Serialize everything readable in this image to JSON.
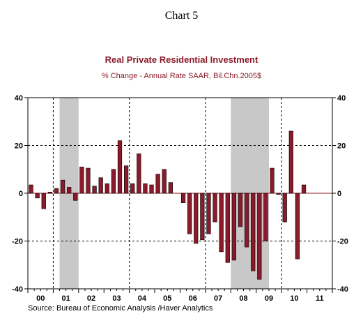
{
  "chart_label": "Chart 5",
  "source": "Source:  Bureau of Economic Analysis /Haver Analytics",
  "chart_data": {
    "type": "bar",
    "title": "Real Private Residential Investment",
    "subtitle": "% Change - Annual Rate    SAAR, Bil.Chn.2005$",
    "ylim": [
      -40,
      40
    ],
    "y_ticks": [
      40,
      20,
      0,
      -20,
      -40
    ],
    "grid": "dashed horizontal at ±20 and dashed vertical at year boundaries",
    "year_labels": [
      "00",
      "01",
      "02",
      "03",
      "04",
      "05",
      "06",
      "07",
      "08",
      "09",
      "10",
      "11"
    ],
    "x_start": "2000Q1",
    "x_end": "2011Q4",
    "bar_color": "#8b1a2a",
    "recession_color": "#c8c8c8",
    "recessions": [
      {
        "start": "2001Q2",
        "end": "2001Q4"
      },
      {
        "start": "2008Q1",
        "end": "2009Q2"
      }
    ],
    "categories": [
      "2000Q1",
      "2000Q2",
      "2000Q3",
      "2000Q4",
      "2001Q1",
      "2001Q2",
      "2001Q3",
      "2001Q4",
      "2002Q1",
      "2002Q2",
      "2002Q3",
      "2002Q4",
      "2003Q1",
      "2003Q2",
      "2003Q3",
      "2003Q4",
      "2004Q1",
      "2004Q2",
      "2004Q3",
      "2004Q4",
      "2005Q1",
      "2005Q2",
      "2005Q3",
      "2005Q4",
      "2006Q1",
      "2006Q2",
      "2006Q3",
      "2006Q4",
      "2007Q1",
      "2007Q2",
      "2007Q3",
      "2007Q4",
      "2008Q1",
      "2008Q2",
      "2008Q3",
      "2008Q4",
      "2009Q1",
      "2009Q2",
      "2009Q3",
      "2009Q4",
      "2010Q1",
      "2010Q2",
      "2010Q3",
      "2010Q4",
      "2011Q1",
      "2011Q2",
      "2011Q3",
      "2011Q4"
    ],
    "values": [
      3.5,
      -2,
      -6.5,
      0.5,
      2,
      5.5,
      2.5,
      -3,
      11,
      10.5,
      3,
      6.5,
      4,
      10,
      22,
      11.5,
      4,
      16.5,
      4,
      3.5,
      8,
      10,
      4.5,
      0,
      -4,
      -17,
      -21,
      -19.5,
      -17,
      -12,
      -24.5,
      -29,
      -28,
      -14,
      -22.5,
      -32.5,
      -36,
      -20,
      10.5,
      -0.5,
      -12,
      26,
      -27.5,
      3.5,
      0,
      0,
      0,
      0
    ]
  }
}
